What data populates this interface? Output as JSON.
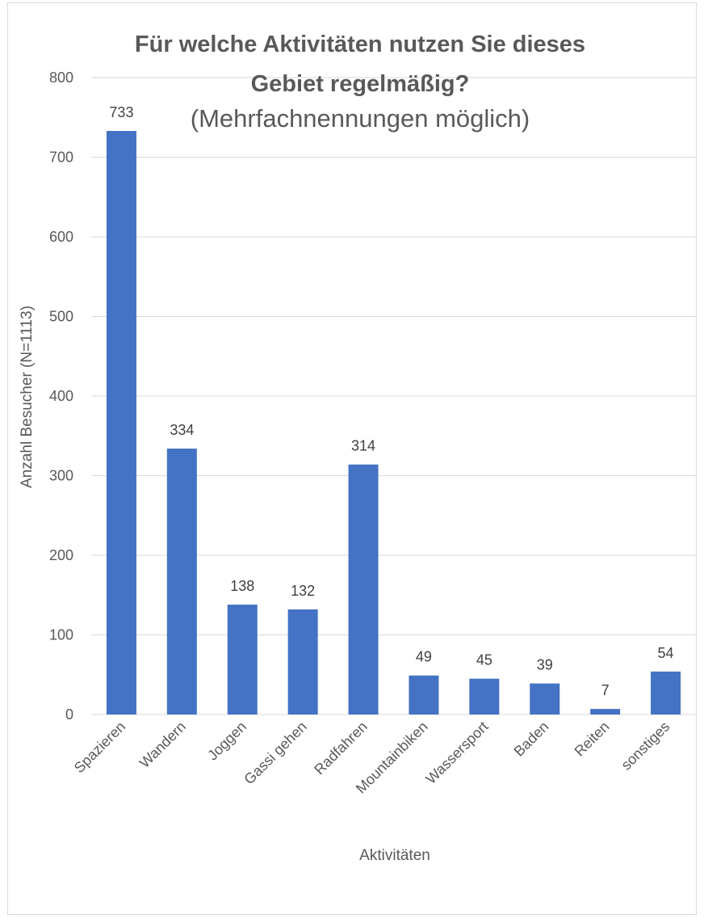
{
  "chart_data": {
    "type": "bar",
    "title_line1": "Für welche Aktivitäten nutzen Sie dieses",
    "title_line2": "Gebiet regelmäßig?",
    "subtitle": "(Mehrfachnennungen möglich)",
    "xlabel": "Aktivitäten",
    "ylabel": "Anzahl Besucher (N=1113)",
    "categories": [
      "Spazieren",
      "Wandern",
      "Joggen",
      "Gassi gehen",
      "Radfahren",
      "Mountainbiken",
      "Wassersport",
      "Baden",
      "Reiten",
      "sonstiges"
    ],
    "values": [
      733,
      334,
      138,
      132,
      314,
      49,
      45,
      39,
      7,
      54
    ],
    "ylim": [
      0,
      800
    ],
    "yticks": [
      0,
      100,
      200,
      300,
      400,
      500,
      600,
      700,
      800
    ],
    "grid": true,
    "bar_color": "#4472c4",
    "grid_color": "#d9d9d9"
  }
}
